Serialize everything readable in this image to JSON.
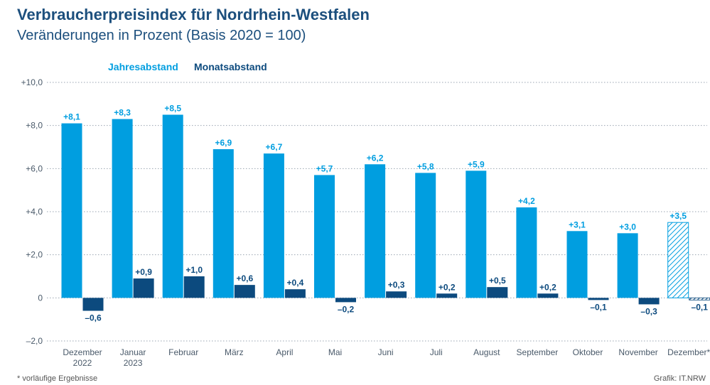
{
  "title": "Verbraucherpreisindex für Nordrhein-Westfalen",
  "subtitle": "Veränderungen in Prozent (Basis 2020 = 100)",
  "footnote": "* vorläufige Ergebnisse",
  "source": "Grafik: IT.NRW",
  "colors": {
    "jahres": "#009ee0",
    "monats": "#0c4a7e",
    "title": "#1c4f7d",
    "axis_text": "#4a5a6a",
    "grid": "#9aa5b1"
  },
  "chart_data": {
    "type": "bar",
    "ylim": [
      -2,
      10
    ],
    "yticks": [
      -2,
      0,
      2,
      4,
      6,
      8,
      10
    ],
    "ytick_labels": [
      "–2,0",
      "0",
      "+2,0",
      "+4,0",
      "+6,0",
      "+8,0",
      "+10,0"
    ],
    "grid": "dotted horizontal",
    "legend_position": "top-left",
    "categories": [
      [
        "Dezember",
        "2022"
      ],
      [
        "Januar",
        "2023"
      ],
      [
        "Februar"
      ],
      [
        "März"
      ],
      [
        "April"
      ],
      [
        "Mai"
      ],
      [
        "Juni"
      ],
      [
        "Juli"
      ],
      [
        "August"
      ],
      [
        "September"
      ],
      [
        "Oktober"
      ],
      [
        "November"
      ],
      [
        "Dezember*"
      ]
    ],
    "series": [
      {
        "name": "Jahresabstand",
        "values": [
          8.1,
          8.3,
          8.5,
          6.9,
          6.7,
          5.7,
          6.2,
          5.8,
          5.9,
          4.2,
          3.1,
          3.0,
          3.5
        ],
        "labels": [
          "+8,1",
          "+8,3",
          "+8,5",
          "+6,9",
          "+6,7",
          "+5,7",
          "+6,2",
          "+5,8",
          "+5,9",
          "+4,2",
          "+3,1",
          "+3,0",
          "+3,5"
        ]
      },
      {
        "name": "Monatsabstand",
        "values": [
          -0.6,
          0.9,
          1.0,
          0.6,
          0.4,
          -0.2,
          0.3,
          0.2,
          0.5,
          0.2,
          -0.1,
          -0.3,
          -0.1
        ],
        "labels": [
          "–0,6",
          "+0,9",
          "+1,0",
          "+0,6",
          "+0,4",
          "–0,2",
          "+0,3",
          "+0,2",
          "+0,5",
          "+0,2",
          "–0,1",
          "–0,3",
          "–0,1"
        ]
      }
    ],
    "provisional_index": 12,
    "provisional_style": "hatched"
  }
}
